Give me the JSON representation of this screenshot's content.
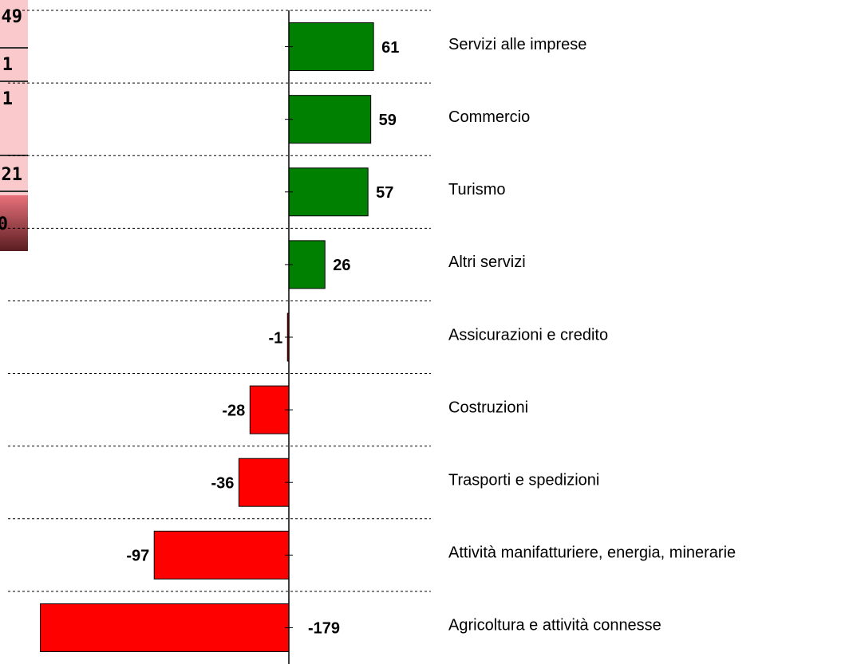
{
  "chart_data": {
    "type": "hbar",
    "categories": [
      "Servizi alle imprese",
      "Commercio",
      "Turismo",
      "Altri servizi",
      "Assicurazioni e credito",
      "Costruzioni",
      "Trasporti e spedizioni",
      "Attività manifatturiere, energia, minerarie",
      "Agricoltura e attività connesse"
    ],
    "values": [
      61,
      59,
      57,
      26,
      -1,
      -28,
      -36,
      -97,
      -179
    ],
    "colors": [
      "#008000",
      "#008000",
      "#008000",
      "#008000",
      "#ff0000",
      "#ff0000",
      "#ff0000",
      "#ff0000",
      "#ff0000"
    ],
    "xlim": [
      -200,
      100
    ]
  },
  "side_panel": {
    "values": [
      "49",
      "1",
      "1",
      "21",
      "0"
    ]
  }
}
